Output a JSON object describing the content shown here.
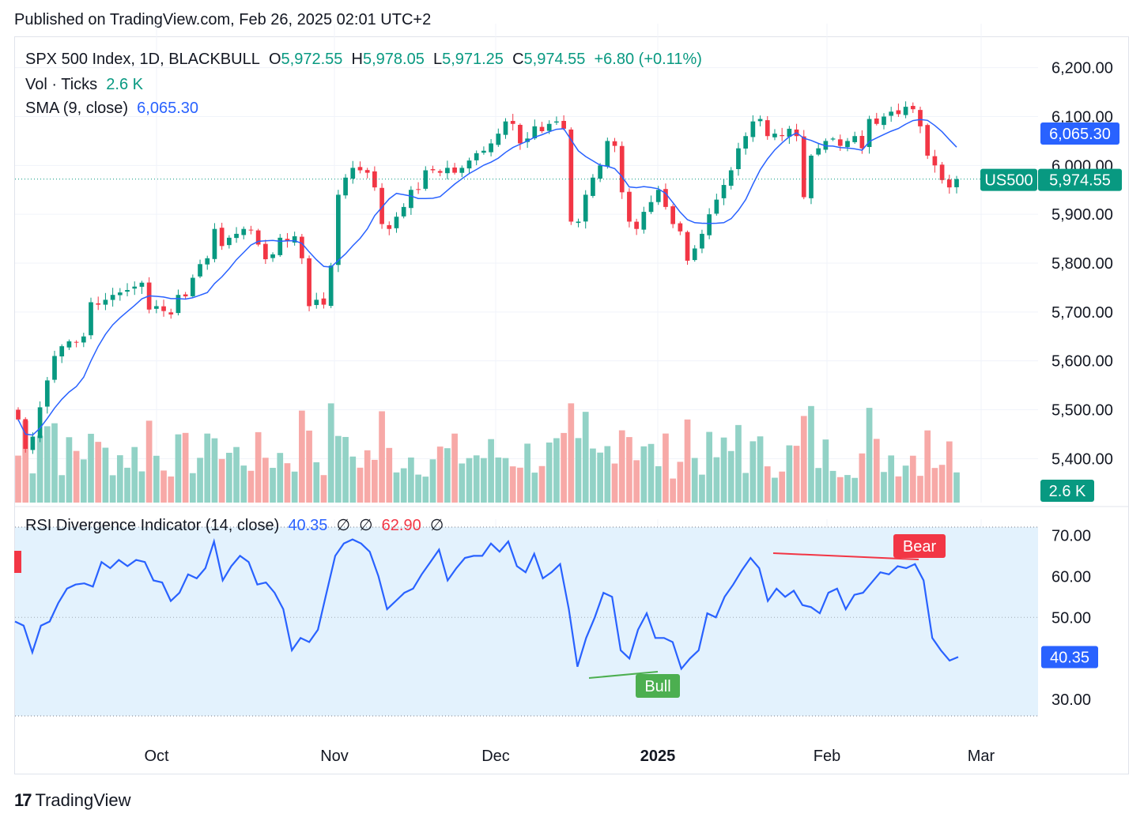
{
  "header": {
    "published": "Published on TradingView.com, Feb 26, 2025 02:01 UTC+2"
  },
  "legend": {
    "symbol": "SPX 500 Index, 1D, BLACKBULL",
    "o_label": "O",
    "o": "5,972.55",
    "h_label": "H",
    "h": "5,978.05",
    "l_label": "L",
    "l": "5,971.25",
    "c_label": "C",
    "c": "5,974.55",
    "change": "+6.80 (+0.11%)",
    "vol_label": "Vol · Ticks",
    "vol": "2.6 K",
    "sma_label": "SMA (9, close)",
    "sma": "6,065.30",
    "rsi_label": "RSI Divergence Indicator (14, close)",
    "rsi": "40.35",
    "rsi_null1": "∅",
    "rsi_null2": "∅",
    "rsi_upper": "62.90",
    "rsi_null3": "∅"
  },
  "badges": {
    "sma": "6,065.30",
    "symbol": "US500",
    "price": "5,974.55",
    "vol": "2.6 K",
    "rsi": "40.35",
    "bull": "Bull",
    "bear": "Bear"
  },
  "colors": {
    "up": "#089981",
    "down": "#f23645",
    "vol_up": "#92d2c6",
    "vol_down": "#f7a9a7",
    "sma": "#2962ff",
    "rsi": "#2962ff",
    "bull": "#4caf50",
    "bear": "#f23645",
    "rsi_bg": "#e3f2fd"
  },
  "footer": {
    "brand": "TradingView"
  },
  "chart_data": [
    {
      "type": "candlestick",
      "title": "SPX 500 Index, 1D, BLACKBULL",
      "price_axis_ticks": [
        "6,200.00",
        "6,100.00",
        "6,000.00",
        "5,900.00",
        "5,800.00",
        "5,700.00",
        "5,600.00",
        "5,500.00",
        "5,400.00"
      ],
      "price_axis_values": [
        6200,
        6100,
        6000,
        5900,
        5800,
        5700,
        5600,
        5500,
        5400
      ],
      "time_axis_ticks": [
        "Oct",
        "Nov",
        "Dec",
        "2025",
        "Feb",
        "Mar"
      ],
      "ylim": [
        5310,
        6290
      ],
      "closes": [
        5480,
        5420,
        5445,
        5505,
        5560,
        5610,
        5630,
        5640,
        5638,
        5650,
        5720,
        5715,
        5725,
        5735,
        5740,
        5745,
        5752,
        5760,
        5705,
        5712,
        5702,
        5695,
        5735,
        5732,
        5770,
        5798,
        5810,
        5870,
        5835,
        5852,
        5860,
        5870,
        5868,
        5838,
        5808,
        5818,
        5852,
        5845,
        5855,
        5810,
        5712,
        5725,
        5715,
        5795,
        5940,
        5975,
        5995,
        5990,
        5985,
        5955,
        5880,
        5870,
        5895,
        5915,
        5950,
        5950,
        5990,
        5990,
        5985,
        5995,
        5985,
        5995,
        6010,
        6025,
        6030,
        6045,
        6065,
        6090,
        6085,
        6045,
        6055,
        6080,
        6070,
        6085,
        6090,
        6075,
        5885,
        5885,
        5940,
        5975,
        6000,
        6050,
        6040,
        5945,
        5885,
        5870,
        5905,
        5925,
        5950,
        5915,
        5880,
        5865,
        5805,
        5830,
        5860,
        5900,
        5930,
        5960,
        5990,
        6035,
        6060,
        6090,
        6095,
        6060,
        6065,
        6060,
        6075,
        6060,
        5935,
        6020,
        6035,
        6050,
        6055,
        6040,
        6050,
        6060,
        6035,
        6095,
        6085,
        6100,
        6110,
        6105,
        6120,
        6115,
        6080,
        6020,
        6000,
        5970,
        5955,
        5972
      ],
      "sma_last": 6065.3,
      "volume": [
        {
          "n": 130
        },
        {
          "n": 115
        },
        {
          "n": 110
        },
        {
          "n": 100
        },
        {
          "n": 95
        },
        {
          "n": 90
        },
        {
          "n": 95
        }
      ]
    },
    {
      "type": "line",
      "title": "RSI Divergence Indicator (14, close)",
      "axis_ticks": [
        "70.00",
        "60.00",
        "50.00",
        "30.00"
      ],
      "axis_values": [
        70,
        60,
        50,
        30
      ],
      "ylim": [
        26,
        72
      ],
      "last": 40.35,
      "series_values": [
        49,
        48,
        41.5,
        48,
        49,
        53.5,
        57,
        58,
        58.3,
        57.5,
        63.5,
        62,
        64,
        62.5,
        64,
        63.5,
        59,
        58.5,
        54,
        56,
        60.5,
        59.5,
        62,
        68.5,
        59,
        62.5,
        65,
        63.5,
        58,
        58.5,
        56,
        52,
        42,
        45,
        44,
        47,
        56,
        65,
        68,
        69,
        68,
        66,
        60,
        52,
        54,
        56,
        57,
        60.5,
        63.5,
        66.5,
        59,
        62,
        64.5,
        65,
        65,
        68,
        66,
        68.5,
        62.5,
        61,
        65.5,
        59.5,
        61,
        63,
        52,
        38,
        45,
        50,
        56,
        55,
        42,
        40,
        47,
        51,
        45,
        45,
        44,
        37.5,
        40,
        42,
        51,
        50,
        55,
        58,
        61.5,
        64.5,
        62,
        54,
        57,
        55,
        56.5,
        53,
        52.5,
        51,
        56,
        57,
        52,
        55.5,
        56,
        58.5,
        61,
        60.5,
        62.5,
        62,
        63,
        59,
        45,
        42,
        39.5,
        40.35
      ]
    }
  ]
}
